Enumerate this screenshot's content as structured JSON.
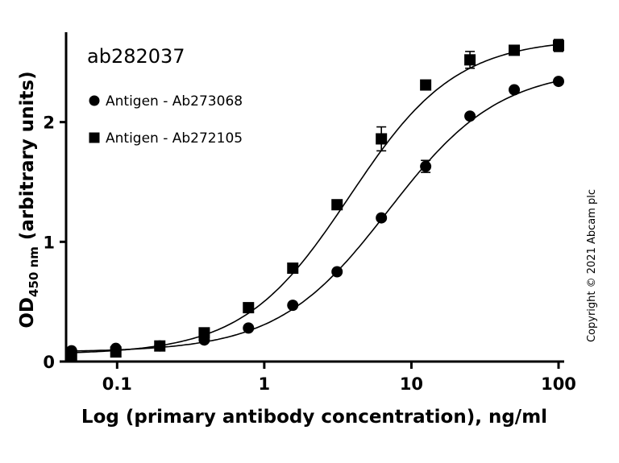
{
  "chart_data": {
    "type": "scatter",
    "title": "ab282037",
    "xlabel": "Log (primary antibody concentration), ng/ml",
    "ylabel": {
      "main": "OD",
      "subscript": "450 nm",
      "suffix": " (arbitrary units)"
    },
    "x_scale": "log",
    "xlim": [
      0.045,
      100
    ],
    "ylim": [
      0,
      2.65
    ],
    "xticks": [
      {
        "value": 0.1,
        "label": "0.1"
      },
      {
        "value": 1,
        "label": "1"
      },
      {
        "value": 10,
        "label": "10"
      },
      {
        "value": 100,
        "label": "100"
      }
    ],
    "yticks": [
      {
        "value": 0,
        "label": "0"
      },
      {
        "value": 1,
        "label": "1"
      },
      {
        "value": 2,
        "label": "2"
      }
    ],
    "grid": false,
    "legend_position": "top-left",
    "series": [
      {
        "name": "Antigen - Ab273068",
        "marker": "circle",
        "x": [
          0.049,
          0.098,
          0.195,
          0.391,
          0.781,
          1.5625,
          3.125,
          6.25,
          12.5,
          25,
          50,
          100
        ],
        "y": [
          0.09,
          0.11,
          0.13,
          0.18,
          0.28,
          0.47,
          0.75,
          1.2,
          1.63,
          2.05,
          2.27,
          2.34
        ],
        "err": [
          0,
          0,
          0,
          0,
          0,
          0,
          0,
          0,
          0.05,
          0,
          0,
          0
        ],
        "fit": {
          "bottom": 0.08,
          "top": 2.45,
          "ec50": 7.0,
          "hill": 1.15
        }
      },
      {
        "name": "Antigen - Ab272105",
        "marker": "square",
        "x": [
          0.049,
          0.098,
          0.195,
          0.391,
          0.781,
          1.5625,
          3.125,
          6.25,
          12.5,
          25,
          50,
          100
        ],
        "y": [
          0.05,
          0.08,
          0.13,
          0.24,
          0.45,
          0.78,
          1.31,
          1.86,
          2.31,
          2.52,
          2.6,
          2.64
        ],
        "err": [
          0,
          0,
          0,
          0,
          0,
          0,
          0,
          0.1,
          0,
          0.07,
          0,
          0.05
        ],
        "fit": {
          "bottom": 0.06,
          "top": 2.7,
          "ec50": 3.8,
          "hill": 1.2
        }
      }
    ],
    "annotations": [
      "Copyright © 2021 Abcam plc"
    ]
  }
}
